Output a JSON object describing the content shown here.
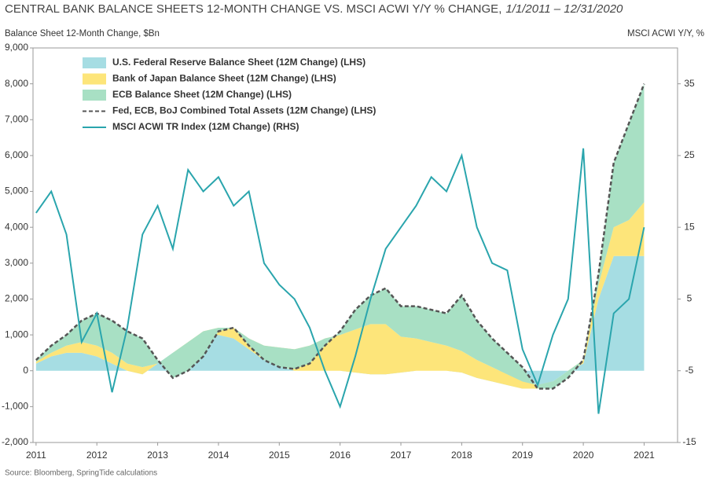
{
  "chart_data": {
    "type": "area",
    "title": "CENTRAL BANK BALANCE SHEETS 12-MONTH CHANGE VS. MSCI ACWI Y/Y % CHANGE,",
    "title_dates": "1/1/2011 – 12/31/2020",
    "y_label": "Balance Sheet 12-Month Change, $Bn",
    "y2_label": "MSCI ACWI Y/Y, %",
    "source": "Source: Bloomberg, SpringTide calculations",
    "x": [
      2011,
      2011.25,
      2011.5,
      2011.75,
      2012,
      2012.25,
      2012.5,
      2012.75,
      2013,
      2013.25,
      2013.5,
      2013.75,
      2014,
      2014.25,
      2014.5,
      2014.75,
      2015,
      2015.25,
      2015.5,
      2015.75,
      2016,
      2016.25,
      2016.5,
      2016.75,
      2017,
      2017.25,
      2017.5,
      2017.75,
      2018,
      2018.25,
      2018.5,
      2018.75,
      2019,
      2019.25,
      2019.5,
      2019.75,
      2020,
      2020.25,
      2020.5,
      2020.75,
      2021
    ],
    "xlim": [
      2010.95,
      2021.55
    ],
    "xticks": [
      2011,
      2012,
      2013,
      2014,
      2015,
      2016,
      2017,
      2018,
      2019,
      2020,
      2021
    ],
    "ylim": [
      -2000,
      9000
    ],
    "yticks": [
      {
        "value": -2000,
        "label": "-2,000"
      },
      {
        "value": -1000,
        "label": "-1,000"
      },
      0,
      {
        "value": 1000,
        "label": "1,000"
      },
      {
        "value": 2000,
        "label": "2,000"
      },
      {
        "value": 3000,
        "label": "3,000"
      },
      {
        "value": 4000,
        "label": "4,000"
      },
      {
        "value": 5000,
        "label": "5,000"
      },
      {
        "value": 6000,
        "label": "6,000"
      },
      {
        "value": 7000,
        "label": "7,000"
      },
      {
        "value": 8000,
        "label": "8,000"
      },
      {
        "value": 9000,
        "label": "9,000"
      }
    ],
    "y2lim": [
      -15,
      40
    ],
    "y2ticks": [
      -15,
      -5,
      5,
      15,
      25,
      35
    ],
    "grid": false,
    "legend": "top-left",
    "series": [
      {
        "name": "U.S. Federal Reserve Balance Sheet (12M Change) (LHS)",
        "type": "area",
        "color": "#a6dde3",
        "values": [
          200,
          400,
          500,
          500,
          400,
          200,
          0,
          -100,
          200,
          500,
          700,
          900,
          1000,
          900,
          600,
          300,
          150,
          0,
          0,
          0,
          0,
          -50,
          -100,
          -100,
          -50,
          0,
          0,
          0,
          -50,
          -200,
          -300,
          -400,
          -500,
          -500,
          -300,
          0,
          200,
          2000,
          3200,
          3200,
          3200
        ]
      },
      {
        "name": "Bank of Japan Balance Sheet (12M Change) (LHS)",
        "type": "area",
        "color": "#fde57a",
        "values": [
          50,
          100,
          200,
          300,
          300,
          300,
          200,
          200,
          0,
          0,
          100,
          200,
          200,
          300,
          300,
          400,
          500,
          600,
          700,
          900,
          1000,
          1200,
          1400,
          1400,
          1000,
          900,
          800,
          700,
          600,
          500,
          400,
          300,
          200,
          100,
          0,
          0,
          100,
          400,
          800,
          1000,
          1500
        ]
      },
      {
        "name": "ECB Balance Sheet (12M Change) (LHS)",
        "type": "area",
        "color": "#a8e0c4",
        "values": [
          50,
          200,
          300,
          600,
          900,
          900,
          900,
          800,
          100,
          -700,
          -800,
          -700,
          -100,
          0,
          -200,
          -400,
          -550,
          -550,
          -500,
          -200,
          100,
          550,
          800,
          1000,
          850,
          900,
          900,
          900,
          1550,
          1100,
          800,
          600,
          400,
          -100,
          -200,
          -200,
          0,
          300,
          1800,
          2700,
          3300
        ]
      },
      {
        "name": "Fed, ECB, BoJ Combined Total Assets (12M Change) (LHS)",
        "type": "line",
        "dashed": true,
        "color": "#555555",
        "values": [
          300,
          700,
          1000,
          1400,
          1600,
          1400,
          1100,
          900,
          300,
          -200,
          0,
          400,
          1100,
          1200,
          700,
          300,
          100,
          50,
          200,
          700,
          1100,
          1700,
          2100,
          2300,
          1800,
          1800,
          1700,
          1600,
          2100,
          1400,
          900,
          500,
          100,
          -500,
          -500,
          -200,
          300,
          2700,
          5800,
          6900,
          8000
        ]
      },
      {
        "name": "MSCI ACWI TR Index (12M Change) (RHS)",
        "type": "line",
        "axis": "y2",
        "color": "#2aa5ad",
        "values": [
          17,
          20,
          14,
          -1,
          3,
          -8,
          1,
          14,
          18,
          12,
          23,
          20,
          22,
          18,
          20,
          10,
          7,
          5,
          1,
          -5,
          -10,
          -3,
          5,
          12,
          15,
          18,
          22,
          20,
          25,
          15,
          10,
          9,
          -2,
          -7,
          0,
          5,
          26,
          -11,
          3,
          5,
          15
        ]
      }
    ]
  }
}
